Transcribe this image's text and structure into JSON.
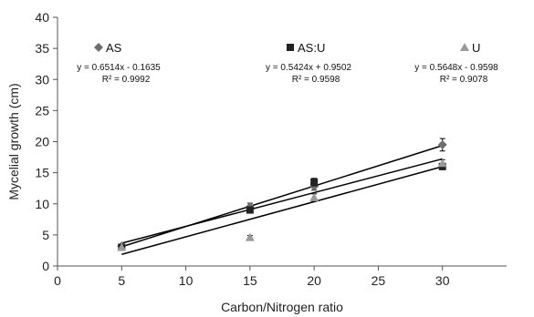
{
  "chart_data": {
    "type": "scatter",
    "xlabel": "Carbon/Nitrogen ratio",
    "ylabel": "Mycelial growth (cm)",
    "xlim": [
      0,
      35
    ],
    "ylim": [
      0,
      40
    ],
    "xticks": [
      "0",
      "5",
      "10",
      "15",
      "20",
      "25",
      "30"
    ],
    "yticks": [
      "0",
      "5",
      "10",
      "15",
      "20",
      "25",
      "30",
      "35",
      "40"
    ],
    "grid": false,
    "series": [
      {
        "name": "AS",
        "marker": "diamond",
        "color": "#6e6e6e",
        "x": [
          5,
          15,
          20,
          30
        ],
        "y": [
          3.2,
          9.5,
          12.8,
          19.5
        ],
        "err": [
          0.3,
          0.6,
          0.6,
          1.0
        ],
        "equation": "y = 0.6514x - 0.1635",
        "r2": "R² = 0.9992",
        "fit": {
          "slope": 0.6514,
          "intercept": -0.1635
        }
      },
      {
        "name": "AS:U",
        "marker": "square",
        "color": "#222222",
        "x": [
          5,
          15,
          20,
          30
        ],
        "y": [
          3.0,
          9.0,
          13.5,
          16.0
        ],
        "err": [
          0.3,
          0.5,
          0.6,
          0.5
        ],
        "equation": "y = 0.5424x + 0.9502",
        "r2": "R² = 0.9598",
        "fit": {
          "slope": 0.5424,
          "intercept": 0.9502
        }
      },
      {
        "name": "U",
        "marker": "triangle",
        "color": "#9a9a9a",
        "x": [
          5,
          15,
          20,
          30
        ],
        "y": [
          3.0,
          4.6,
          11.0,
          16.5
        ],
        "err": [
          0.3,
          0.3,
          0.6,
          0.6
        ],
        "equation": "y = 0.5648x - 0.9598",
        "r2": "R² = 0.9078",
        "fit": {
          "slope": 0.5648,
          "intercept": -0.9598
        }
      }
    ]
  }
}
